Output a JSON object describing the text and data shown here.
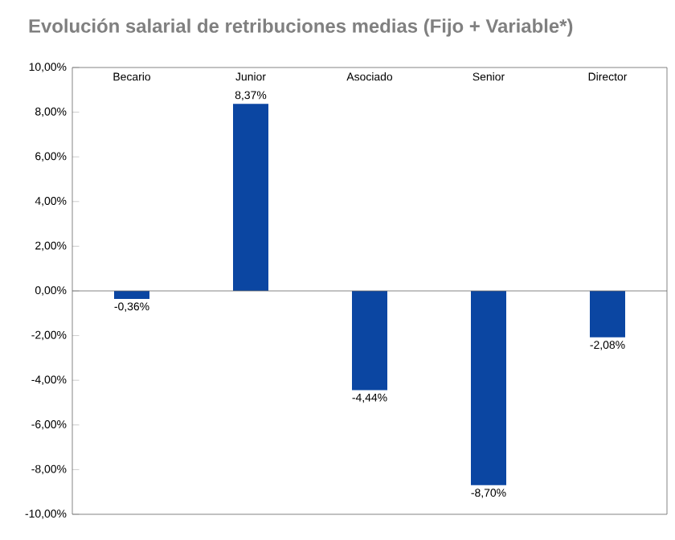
{
  "chart_data": {
    "type": "bar",
    "title": "Evolución salarial de retribuciones medias (Fijo + Variable*)",
    "categories": [
      "Becario",
      "Junior",
      "Asociado",
      "Senior",
      "Director"
    ],
    "values": [
      -0.36,
      8.37,
      -4.44,
      -8.7,
      -2.08
    ],
    "value_labels": [
      "-0,36%",
      "8,37%",
      "-4,44%",
      "-8,70%",
      "-2,08%"
    ],
    "color": "#0b46a2",
    "ylim": [
      -10,
      10
    ],
    "yticks": [
      {
        "value": -10,
        "label": "-10,00%"
      },
      {
        "value": -8,
        "label": "-8,00%"
      },
      {
        "value": -6,
        "label": "-6,00%"
      },
      {
        "value": -4,
        "label": "-4,00%"
      },
      {
        "value": -2,
        "label": "-2,00%"
      },
      {
        "value": 0,
        "label": "0,00%"
      },
      {
        "value": 2,
        "label": "2,00%"
      },
      {
        "value": 4,
        "label": "4,00%"
      },
      {
        "value": 6,
        "label": "6,00%"
      },
      {
        "value": 8,
        "label": "8,00%"
      },
      {
        "value": 10,
        "label": "10,00%"
      }
    ],
    "marker": "none"
  }
}
